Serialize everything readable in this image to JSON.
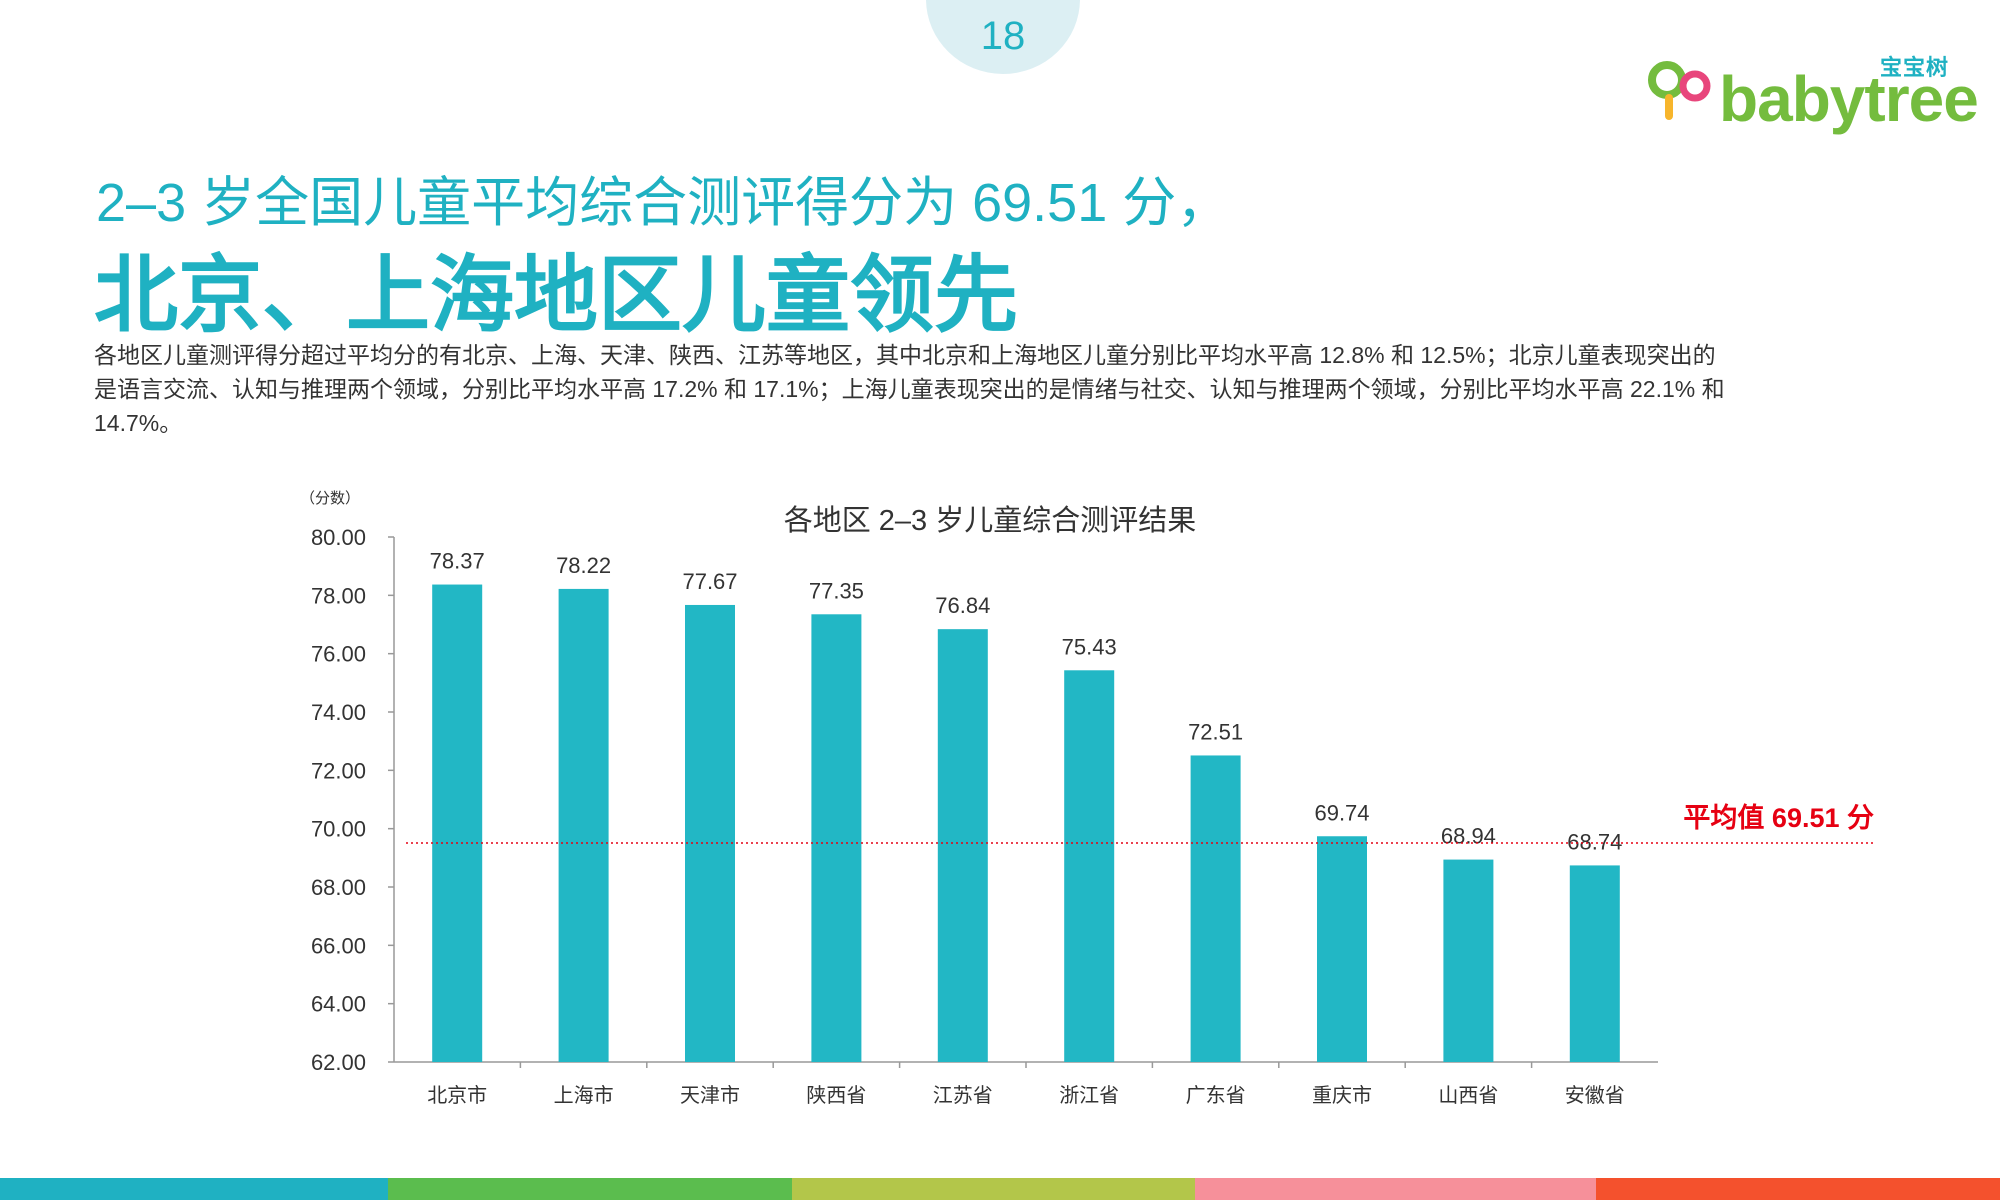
{
  "page": {
    "number": "18"
  },
  "logo": {
    "cn": "宝宝树",
    "en": "babytree"
  },
  "title": {
    "line1": "2–3 岁全国儿童平均综合测评得分为 69.51 分，",
    "line2": "北京、上海地区儿童领先"
  },
  "summary": "各地区儿童测评得分超过平均分的有北京、上海、天津、陕西、江苏等地区，其中北京和上海地区儿童分别比平均水平高 12.8% 和 12.5%；北京儿童表现突出的是语言交流、认知与推理两个领域，分别比平均水平高 17.2% 和 17.1%；上海儿童表现突出的是情绪与社交、认知与推理两个领域，分别比平均水平高 22.1% 和 14.7%。",
  "colors": {
    "accent": "#1fb1c2",
    "bar": "#22b7c5",
    "average_line": "#e60012",
    "stripe": [
      "#1fb1c2",
      "#5bbd4e",
      "#b3c64a",
      "#f6909a",
      "#f4512d"
    ]
  },
  "chart_data": {
    "type": "bar",
    "title": "各地区 2–3 岁儿童综合测评结果",
    "ylabel": "（分数）",
    "xlabel": "",
    "categories": [
      "北京市",
      "上海市",
      "天津市",
      "陕西省",
      "江苏省",
      "浙江省",
      "广东省",
      "重庆市",
      "山西省",
      "安徽省"
    ],
    "values": [
      78.37,
      78.22,
      77.67,
      77.35,
      76.84,
      75.43,
      72.51,
      69.74,
      68.94,
      68.74
    ],
    "value_labels": [
      "78.37",
      "78.22",
      "77.67",
      "77.35",
      "76.84",
      "75.43",
      "72.51",
      "69.74",
      "68.94",
      "68.74"
    ],
    "ylim": [
      62,
      80
    ],
    "yticks": [
      "62.00",
      "64.00",
      "66.00",
      "68.00",
      "70.00",
      "72.00",
      "74.00",
      "76.00",
      "78.00",
      "80.00"
    ],
    "average": {
      "value": 69.51,
      "label": "平均值 69.51 分"
    },
    "grid": false,
    "legend": "none"
  }
}
